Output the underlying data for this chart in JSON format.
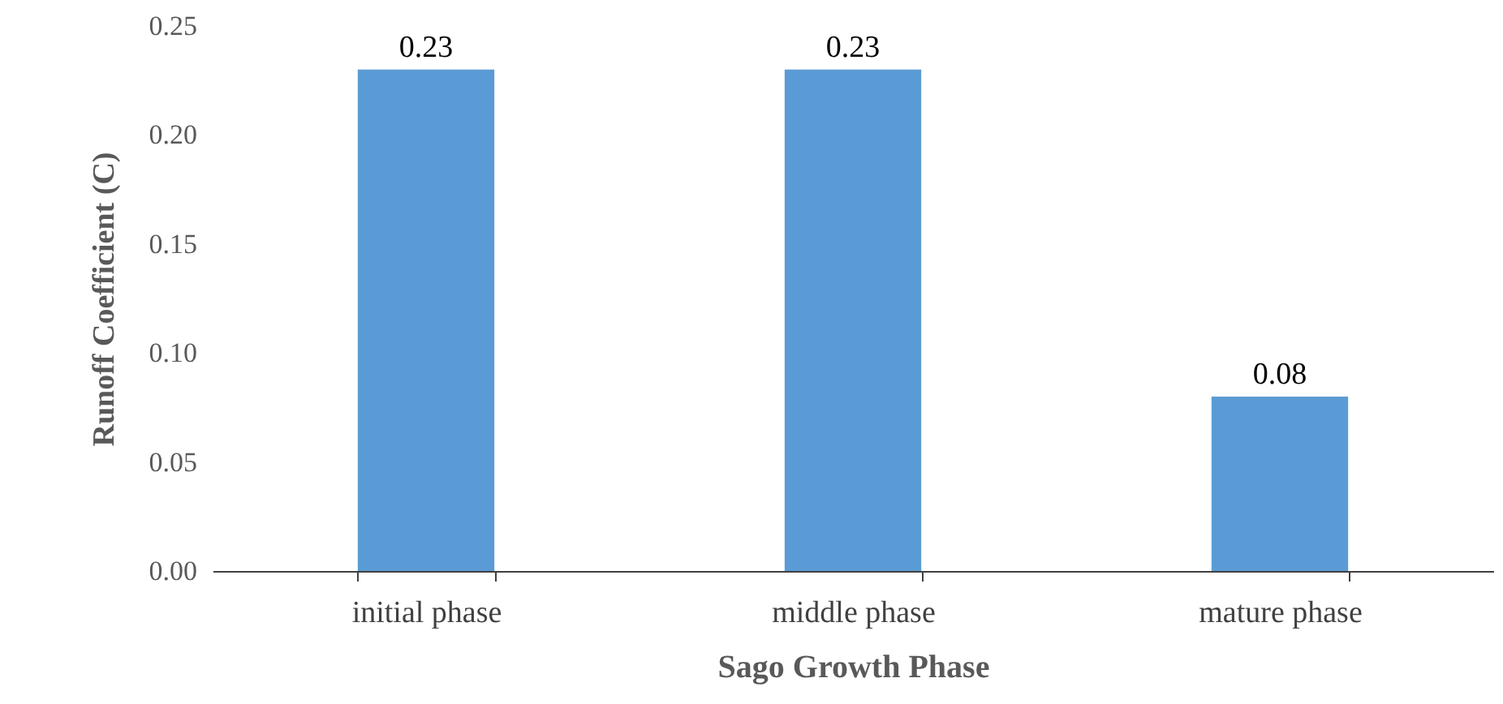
{
  "chart_data": {
    "type": "bar",
    "xlabel": "Sago Growth Phase",
    "ylabel": "Runoff Coefficient (C)",
    "categories": [
      "initial phase",
      "middle phase",
      "mature phase"
    ],
    "values": [
      0.23,
      0.23,
      0.08
    ],
    "color": "#5b9bd5",
    "ylim": [
      0,
      0.25
    ],
    "yticks": [
      {
        "value": 0,
        "label": "0.00"
      },
      0.05,
      {
        "value": 0.1,
        "label": "0.10"
      },
      0.15,
      {
        "value": 0.2,
        "label": "0.20"
      },
      0.25
    ],
    "data_labels": true,
    "grid": false
  }
}
